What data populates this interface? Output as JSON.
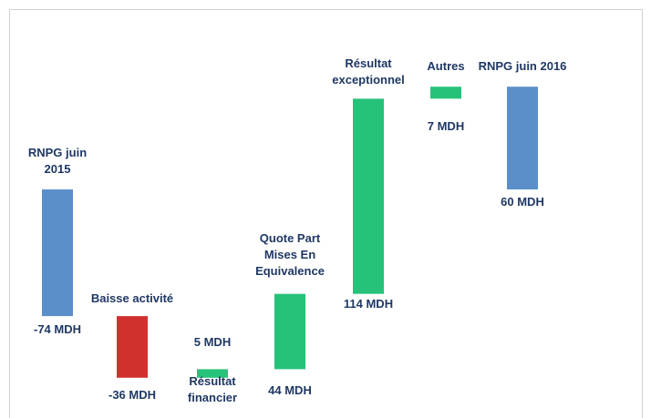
{
  "chart_data": {
    "type": "waterfall",
    "categories": [
      "RNPG juin 2015",
      "Baisse activité",
      "Résultat financier",
      "Quote Part Mises En Equivalence",
      "Résultat exceptionnel",
      "Autres",
      "RNPG juin 2016"
    ],
    "values": [
      -74,
      -36,
      5,
      44,
      114,
      7,
      60
    ],
    "value_labels": [
      "-74 MDH",
      "-36 MDH",
      "5 MDH",
      "44 MDH",
      "114 MDH",
      "7 MDH",
      "60 MDH"
    ],
    "colors": [
      "#5b8fc9",
      "#d0312d",
      "#27c27a",
      "#27c27a",
      "#27c27a",
      "#27c27a",
      "#5b8fc9"
    ],
    "total_bars": [
      0,
      6
    ]
  }
}
